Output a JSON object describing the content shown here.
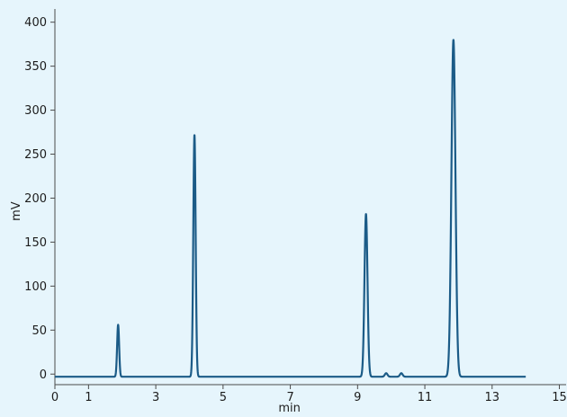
{
  "colors": {
    "background": "#e6f5fc",
    "line": "#1b5b87",
    "axis": "#4a4a4a",
    "text": "#1c1c1c"
  },
  "chart_data": {
    "type": "line",
    "title": "",
    "xlabel": "min",
    "ylabel": "mV",
    "xlim": [
      0,
      15.2
    ],
    "ylim": [
      -12,
      415
    ],
    "grid": false,
    "x_ticks": [
      0,
      1,
      3,
      5,
      7,
      9,
      11,
      13,
      15
    ],
    "x_tick_labels": [
      "0",
      "1",
      "3",
      "5",
      "7",
      "9",
      "11",
      "13",
      "15"
    ],
    "y_ticks": [
      0,
      50,
      100,
      150,
      200,
      250,
      300,
      350,
      400
    ],
    "y_tick_labels": [
      "0",
      "50",
      "100",
      "150",
      "200",
      "250",
      "300",
      "350",
      "400"
    ],
    "series": [
      {
        "name": "",
        "baseline": -3,
        "x_start": 0,
        "x_end": 14,
        "peaks": [
          {
            "x": 1.88,
            "y": 56,
            "width": 0.03
          },
          {
            "x": 4.15,
            "y": 272,
            "width": 0.035
          },
          {
            "x": 9.25,
            "y": 182,
            "width": 0.045
          },
          {
            "x": 9.85,
            "y": 1,
            "width": 0.04
          },
          {
            "x": 10.3,
            "y": 1,
            "width": 0.04
          },
          {
            "x": 11.85,
            "y": 380,
            "width": 0.06
          }
        ]
      }
    ]
  }
}
